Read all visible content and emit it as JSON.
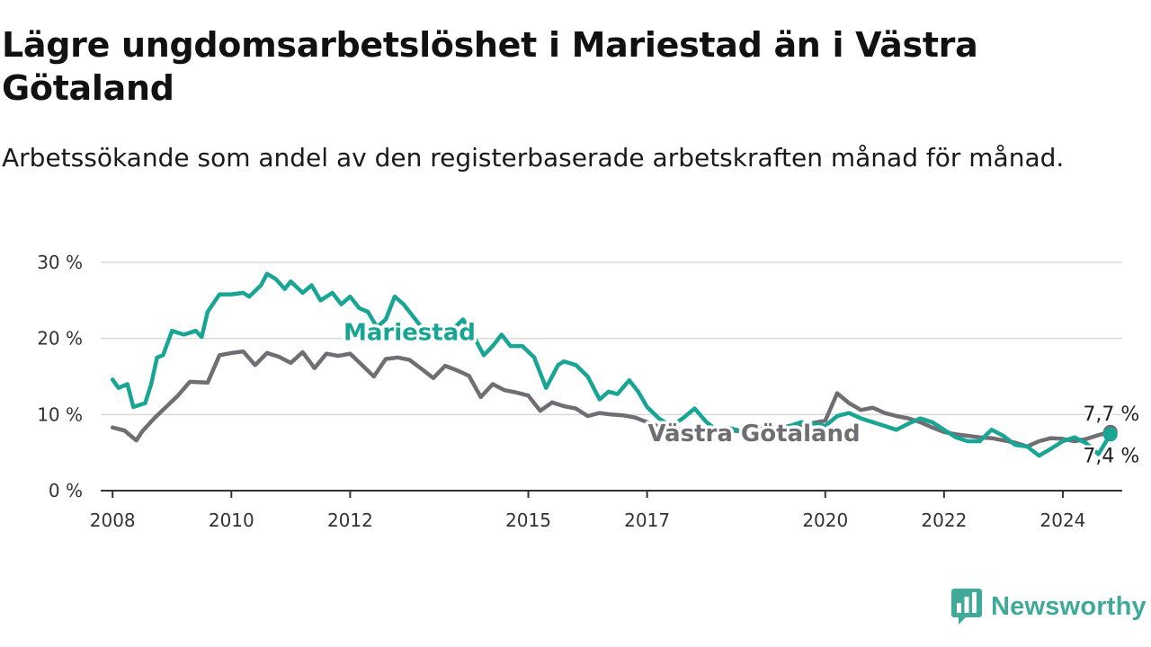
{
  "header": {
    "title": "Lägre ungdomsarbetslöshet i Mariestad än i Västra Götaland",
    "subtitle": "Arbetssökande som andel av den registerbaserade arbetskraften månad för månad."
  },
  "logo": {
    "text": "Newsworthy",
    "icon": "newsworthy-chart-bubble-icon",
    "color": "#3fa99a"
  },
  "chart_data": {
    "type": "line",
    "ylim": [
      0,
      30
    ],
    "xlim": [
      2007.8,
      2025.0
    ],
    "y_ticks": [
      0,
      10,
      20,
      30
    ],
    "y_tick_labels": [
      "0 %",
      "10 %",
      "20 %",
      "30 %"
    ],
    "x_ticks": [
      2008,
      2010,
      2012,
      2015,
      2017,
      2020,
      2022,
      2024
    ],
    "x_tick_labels": [
      "2008",
      "2010",
      "2012",
      "2015",
      "2017",
      "2020",
      "2022",
      "2024"
    ],
    "grid": true,
    "series": [
      {
        "name": "Västra Götaland",
        "color": "#6e6e73",
        "end_label": "7,7 %",
        "x": [
          2008.0,
          2008.2,
          2008.4,
          2008.5,
          2008.7,
          2008.9,
          2009.1,
          2009.3,
          2009.6,
          2009.8,
          2010.0,
          2010.2,
          2010.4,
          2010.6,
          2010.8,
          2011.0,
          2011.2,
          2011.4,
          2011.6,
          2011.8,
          2012.0,
          2012.2,
          2012.4,
          2012.6,
          2012.8,
          2013.0,
          2013.2,
          2013.4,
          2013.6,
          2013.8,
          2014.0,
          2014.2,
          2014.4,
          2014.6,
          2014.8,
          2015.0,
          2015.2,
          2015.4,
          2015.6,
          2015.8,
          2016.0,
          2016.2,
          2016.4,
          2016.6,
          2016.8,
          2017.0,
          2017.2,
          2017.4,
          2017.6,
          2017.8,
          2018.0,
          2018.2,
          2018.4,
          2018.6,
          2018.8,
          2019.0,
          2019.2,
          2019.4,
          2019.6,
          2019.8,
          2020.0,
          2020.2,
          2020.4,
          2020.6,
          2020.8,
          2021.0,
          2021.2,
          2021.4,
          2021.6,
          2021.8,
          2022.0,
          2022.2,
          2022.4,
          2022.6,
          2022.8,
          2023.0,
          2023.2,
          2023.4,
          2023.6,
          2023.8,
          2024.0,
          2024.2,
          2024.4,
          2024.6,
          2024.8
        ],
        "values": [
          8.3,
          7.9,
          6.6,
          7.8,
          9.5,
          11.0,
          12.5,
          14.3,
          14.2,
          17.8,
          18.1,
          18.3,
          16.5,
          18.1,
          17.6,
          16.8,
          18.2,
          16.1,
          18.0,
          17.7,
          18.0,
          16.5,
          15.0,
          17.3,
          17.5,
          17.2,
          16.0,
          14.8,
          16.4,
          15.8,
          15.1,
          12.3,
          14.0,
          13.2,
          12.9,
          12.5,
          10.5,
          11.6,
          11.1,
          10.8,
          9.8,
          10.2,
          10.0,
          9.9,
          9.6,
          9.0,
          8.4,
          8.2,
          8.0,
          7.6,
          7.8,
          7.7,
          7.9,
          7.8,
          8.0,
          8.3,
          8.2,
          8.5,
          8.4,
          8.9,
          9.2,
          12.8,
          11.5,
          10.6,
          10.9,
          10.2,
          9.8,
          9.5,
          9.0,
          8.3,
          7.7,
          7.4,
          7.2,
          7.0,
          6.9,
          6.6,
          6.3,
          5.8,
          6.5,
          6.9,
          6.8,
          6.5,
          6.8,
          7.3,
          7.7
        ]
      },
      {
        "name": "Mariestad",
        "color": "#18a594",
        "end_label": "7,4 %",
        "x": [
          2008.0,
          2008.1,
          2008.25,
          2008.35,
          2008.55,
          2008.65,
          2008.75,
          2008.85,
          2009.0,
          2009.2,
          2009.4,
          2009.5,
          2009.6,
          2009.8,
          2010.0,
          2010.2,
          2010.3,
          2010.5,
          2010.6,
          2010.75,
          2010.9,
          2011.0,
          2011.2,
          2011.35,
          2011.5,
          2011.7,
          2011.85,
          2012.0,
          2012.15,
          2012.3,
          2012.45,
          2012.6,
          2012.75,
          2012.9,
          2013.0,
          2013.1,
          2013.2,
          2013.3,
          2013.5,
          2013.7,
          2013.9,
          2014.1,
          2014.25,
          2014.4,
          2014.55,
          2014.7,
          2014.9,
          2015.1,
          2015.3,
          2015.5,
          2015.6,
          2015.8,
          2016.0,
          2016.2,
          2016.35,
          2016.5,
          2016.7,
          2016.85,
          2017.0,
          2017.2,
          2017.4,
          2017.6,
          2017.8,
          2018.0,
          2018.2,
          2018.4,
          2018.6,
          2018.8,
          2019.0,
          2019.2,
          2019.4,
          2019.6,
          2019.8,
          2020.0,
          2020.2,
          2020.4,
          2020.6,
          2020.8,
          2021.0,
          2021.2,
          2021.4,
          2021.6,
          2021.8,
          2022.0,
          2022.2,
          2022.4,
          2022.6,
          2022.8,
          2023.0,
          2023.2,
          2023.4,
          2023.6,
          2023.8,
          2024.0,
          2024.2,
          2024.4,
          2024.6,
          2024.8
        ],
        "values": [
          14.6,
          13.5,
          14.0,
          11.0,
          11.5,
          14.0,
          17.5,
          17.8,
          21.0,
          20.5,
          21.0,
          20.2,
          23.5,
          25.8,
          25.8,
          26.0,
          25.5,
          27.0,
          28.5,
          27.8,
          26.5,
          27.5,
          26.0,
          27.0,
          25.0,
          26.0,
          24.5,
          25.5,
          24.0,
          23.5,
          21.5,
          22.5,
          25.5,
          24.5,
          23.5,
          22.5,
          21.5,
          20.0,
          21.5,
          21.0,
          22.5,
          20.0,
          17.8,
          19.0,
          20.5,
          19.0,
          19.0,
          17.5,
          13.5,
          16.5,
          17.0,
          16.5,
          15.0,
          12.0,
          13.0,
          12.7,
          14.5,
          13.0,
          11.0,
          9.5,
          8.5,
          9.5,
          10.8,
          9.0,
          7.8,
          8.2,
          7.8,
          8.5,
          8.0,
          8.0,
          8.5,
          9.0,
          8.8,
          8.5,
          9.8,
          10.2,
          9.5,
          9.0,
          8.5,
          8.0,
          8.8,
          9.5,
          9.0,
          8.0,
          7.0,
          6.5,
          6.5,
          8.0,
          7.2,
          6.0,
          5.8,
          4.6,
          5.5,
          6.5,
          7.0,
          6.2,
          4.8,
          7.4
        ]
      }
    ],
    "annotations": [
      {
        "text": "Mariestad",
        "series": "Mariestad"
      },
      {
        "text": "Västra Götaland",
        "series": "Västra Götaland"
      }
    ]
  }
}
